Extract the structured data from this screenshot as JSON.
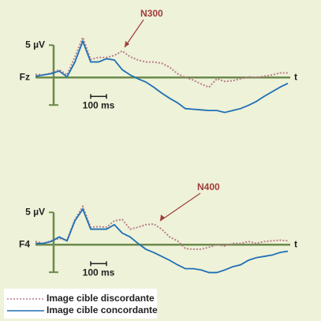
{
  "chart_data": [
    {
      "type": "line",
      "channel_label": "Fz",
      "time_label": "t",
      "annotation": "N300",
      "scale_bar_y": {
        "value": 5,
        "label": "5 µV"
      },
      "scale_bar_x": {
        "value": 100,
        "label": "100 ms"
      },
      "x": [
        -100,
        -50,
        0,
        50,
        100,
        150,
        200,
        250,
        300,
        350,
        400,
        450,
        500,
        550,
        600,
        650,
        700,
        750,
        800,
        850,
        900,
        950,
        1000,
        1050,
        1100,
        1150,
        1200,
        1250,
        1300,
        1350,
        1400,
        1450,
        1500
      ],
      "xlim": [
        -100,
        1500
      ],
      "ylim": [
        -6.3,
        7.1
      ],
      "series": [
        {
          "name": "Image cible discordante",
          "color": "#b97f8e",
          "dash": true,
          "values": [
            0.5,
            0.4,
            0.7,
            1.2,
            0.4,
            3.2,
            6.2,
            2.8,
            3.1,
            3.1,
            3.4,
            4.1,
            3.2,
            2.7,
            2.4,
            2.4,
            2.2,
            1.6,
            0.6,
            0,
            -0.4,
            -1.0,
            -1.5,
            -0.2,
            -0.6,
            -0.5,
            -0.2,
            0.1,
            0,
            0.2,
            0.4,
            0.7,
            0.7
          ]
        },
        {
          "name": "Image cible concordante",
          "color": "#1f6fb5",
          "dash": false,
          "values": [
            0.2,
            0.4,
            0.6,
            1.0,
            0.1,
            2.4,
            5.6,
            2.4,
            2.4,
            2.9,
            2.7,
            1.2,
            0.4,
            -0.2,
            -0.7,
            -1.5,
            -2.4,
            -3.2,
            -3.9,
            -4.8,
            -4.9,
            -5.0,
            -5.1,
            -5.1,
            -5.4,
            -5.1,
            -4.8,
            -4.3,
            -3.7,
            -2.9,
            -2.2,
            -1.5,
            -0.9
          ]
        }
      ]
    },
    {
      "type": "line",
      "channel_label": "F4",
      "time_label": "t",
      "annotation": "N400",
      "scale_bar_y": {
        "value": 5,
        "label": "5 µV"
      },
      "scale_bar_x": {
        "value": 100,
        "label": "100 ms"
      },
      "x": [
        -100,
        -50,
        0,
        50,
        100,
        150,
        200,
        250,
        300,
        350,
        400,
        450,
        500,
        550,
        600,
        650,
        700,
        750,
        800,
        850,
        900,
        950,
        1000,
        1050,
        1100,
        1150,
        1200,
        1250,
        1300,
        1350,
        1400,
        1450,
        1500
      ],
      "xlim": [
        -100,
        1500
      ],
      "ylim": [
        -6.3,
        7.1
      ],
      "series": [
        {
          "color": "#b97f8e",
          "dash": true,
          "values": [
            0.5,
            0.2,
            0.6,
            1.0,
            0.7,
            3.9,
            5.9,
            2.7,
            2.8,
            2.7,
            3.7,
            3.9,
            2.4,
            2.7,
            3.1,
            3.2,
            2.4,
            1.2,
            0.6,
            -0.6,
            -0.7,
            -0.7,
            -0.4,
            0,
            -0.2,
            0.2,
            0.2,
            0.5,
            0.2,
            0.5,
            0.6,
            0.7,
            0.6
          ]
        },
        {
          "color": "#1f6fb5",
          "dash": false,
          "values": [
            0.2,
            0.2,
            0.5,
            1.2,
            0.6,
            3.7,
            5.5,
            2.4,
            2.4,
            2.4,
            3.1,
            1.8,
            1.2,
            0.2,
            -0.7,
            -1.2,
            -1.8,
            -2.4,
            -3.1,
            -3.7,
            -3.7,
            -3.9,
            -4.3,
            -4.3,
            -3.9,
            -3.4,
            -3.1,
            -2.4,
            -2.0,
            -1.8,
            -1.6,
            -1.2,
            -1.0
          ]
        }
      ]
    }
  ]
}
